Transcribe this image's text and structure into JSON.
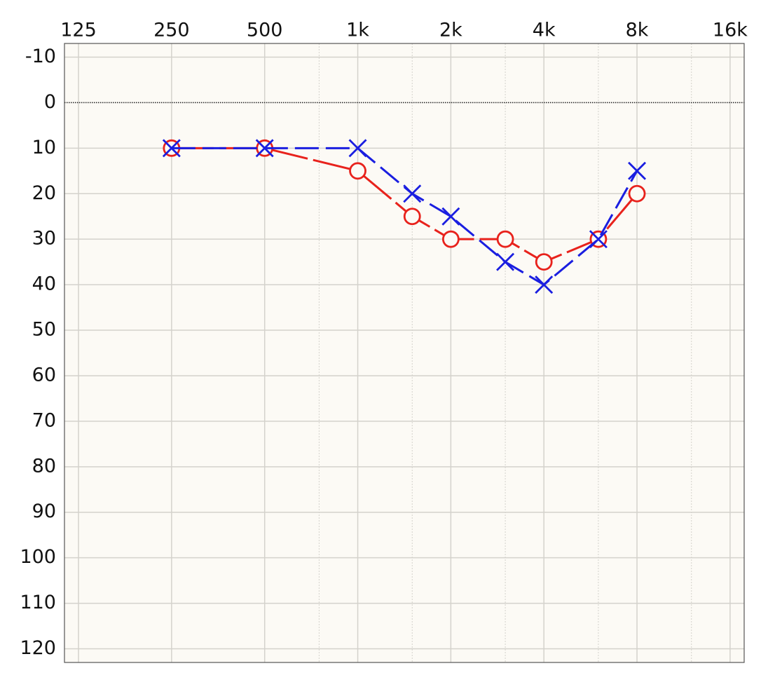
{
  "chart_data": {
    "type": "audiogram",
    "x": [
      250,
      500,
      1000,
      1500,
      2000,
      3000,
      4000,
      6000,
      8000
    ],
    "series": [
      {
        "color": "#e8221c",
        "marker": "o",
        "values": [
          10,
          10,
          15,
          25,
          30,
          30,
          35,
          30,
          20
        ]
      },
      {
        "color": "#1a1ee0",
        "marker": "x",
        "values": [
          10,
          10,
          10,
          20,
          25,
          35,
          40,
          30,
          15
        ]
      }
    ],
    "xscale": "log",
    "xlim": [
      112.6,
      17770
    ],
    "xticks": [
      125,
      250,
      500,
      {
        "value": 1000,
        "label": "1k"
      },
      {
        "value": 2000,
        "label": "2k"
      },
      {
        "value": 4000,
        "label": "4k"
      },
      {
        "value": 8000,
        "label": "8k"
      },
      {
        "value": 16000,
        "label": "16k"
      }
    ],
    "xminor": [
      750,
      1500,
      3000,
      6000,
      12000
    ],
    "ylim": [
      -13,
      123
    ],
    "y_inverted": true,
    "yticks": [
      -10,
      0,
      10,
      20,
      30,
      40,
      50,
      60,
      70,
      80,
      90,
      100,
      110,
      120
    ],
    "grid": true,
    "zero_line": true
  }
}
